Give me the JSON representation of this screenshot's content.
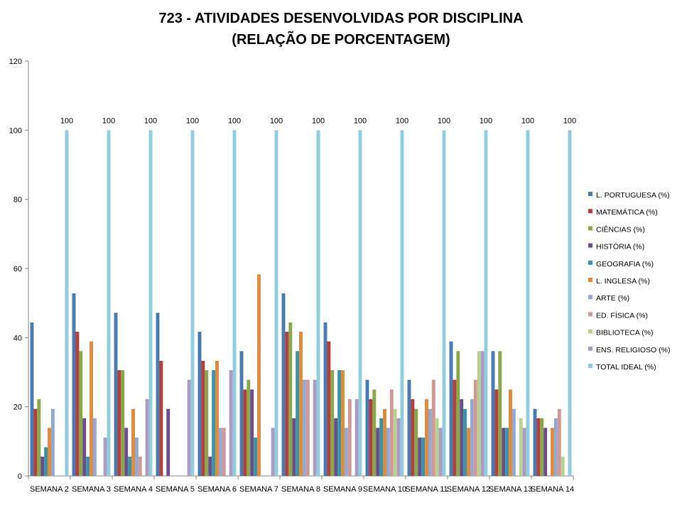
{
  "chart_data": {
    "type": "bar",
    "title": "723 - ATIVIDADES DESENVOLVIDAS POR DISCIPLINA",
    "subtitle": "(RELAÇÃO DE PORCENTAGEM)",
    "categories": [
      "SEMANA 2",
      "SEMANA 3",
      "SEMANA 4",
      "SEMANA 5",
      "SEMANA 6",
      "SEMANA 7",
      "SEMANA 8",
      "SEMANA 9",
      "SEMANA 10",
      "SEMANA 11",
      "SEMANA 12",
      "SEMANA 13",
      "SEMANA 14"
    ],
    "ylim": [
      0,
      120
    ],
    "yticks": [
      0,
      20,
      40,
      60,
      80,
      100,
      120
    ],
    "grid": false,
    "legend_position": "right",
    "series": [
      {
        "name": "L. PORTUGUESA (%)",
        "color": "#4a7ab0",
        "values": [
          44.4,
          52.8,
          47.2,
          47.2,
          41.7,
          36.1,
          52.8,
          44.4,
          27.8,
          27.8,
          38.9,
          36.1,
          19.4
        ]
      },
      {
        "name": "MATEMÁTICA (%)",
        "color": "#b0413e",
        "values": [
          19.4,
          41.7,
          30.6,
          33.3,
          33.3,
          25.0,
          41.7,
          38.9,
          22.2,
          22.2,
          27.8,
          25.0,
          16.7
        ]
      },
      {
        "name": "CIÊNCIAS (%)",
        "color": "#8aa84a",
        "values": [
          22.2,
          36.1,
          30.6,
          0,
          30.6,
          27.8,
          44.4,
          30.6,
          25.0,
          19.4,
          36.1,
          36.1,
          16.7
        ]
      },
      {
        "name": "HISTÓRIA (%)",
        "color": "#6b4d8a",
        "values": [
          5.6,
          16.7,
          13.9,
          19.4,
          5.6,
          25.0,
          16.7,
          16.7,
          13.9,
          11.1,
          22.2,
          13.9,
          13.9
        ]
      },
      {
        "name": "GEOGRAFIA (%)",
        "color": "#3a94a8",
        "values": [
          8.3,
          5.6,
          5.6,
          0,
          30.6,
          11.1,
          36.1,
          30.6,
          16.7,
          11.1,
          19.4,
          13.9,
          0
        ]
      },
      {
        "name": "L. INGLESA (%)",
        "color": "#e08a3c",
        "values": [
          13.9,
          38.9,
          19.4,
          0,
          33.3,
          58.3,
          41.7,
          30.6,
          19.4,
          22.2,
          13.9,
          25.0,
          13.9
        ]
      },
      {
        "name": "ARTE (%)",
        "color": "#93a9cf",
        "values": [
          19.4,
          16.7,
          11.1,
          0,
          13.9,
          0,
          27.8,
          13.9,
          13.9,
          19.4,
          22.2,
          19.4,
          16.7
        ]
      },
      {
        "name": "ED. FÍSICA (%)",
        "color": "#d09896",
        "values": [
          0,
          0,
          5.6,
          0,
          13.9,
          0,
          27.8,
          22.2,
          25.0,
          27.8,
          27.8,
          0,
          19.4
        ]
      },
      {
        "name": "BIBLIOTECA (%)",
        "color": "#bcd190",
        "values": [
          0,
          0,
          0,
          0,
          0,
          0,
          0,
          0,
          19.4,
          16.7,
          36.1,
          16.7,
          5.6
        ]
      },
      {
        "name": "ENS. RELIGIOSO (%)",
        "color": "#ab9cc4",
        "values": [
          0,
          11.1,
          22.2,
          27.8,
          30.6,
          13.9,
          27.8,
          22.2,
          16.7,
          13.9,
          36.1,
          13.9,
          0
        ]
      },
      {
        "name": "TOTAL IDEAL (%)",
        "color": "#92cddd",
        "values": [
          100,
          100,
          100,
          100,
          100,
          100,
          100,
          100,
          100,
          100,
          100,
          100,
          100
        ]
      }
    ],
    "annotations": {
      "total_ideal_label": "100",
      "total_ideal_labels": [
        "100",
        "100",
        "100",
        "100",
        "100",
        "100",
        "100",
        "100",
        "100",
        "100",
        "100",
        "100",
        "100"
      ]
    }
  }
}
